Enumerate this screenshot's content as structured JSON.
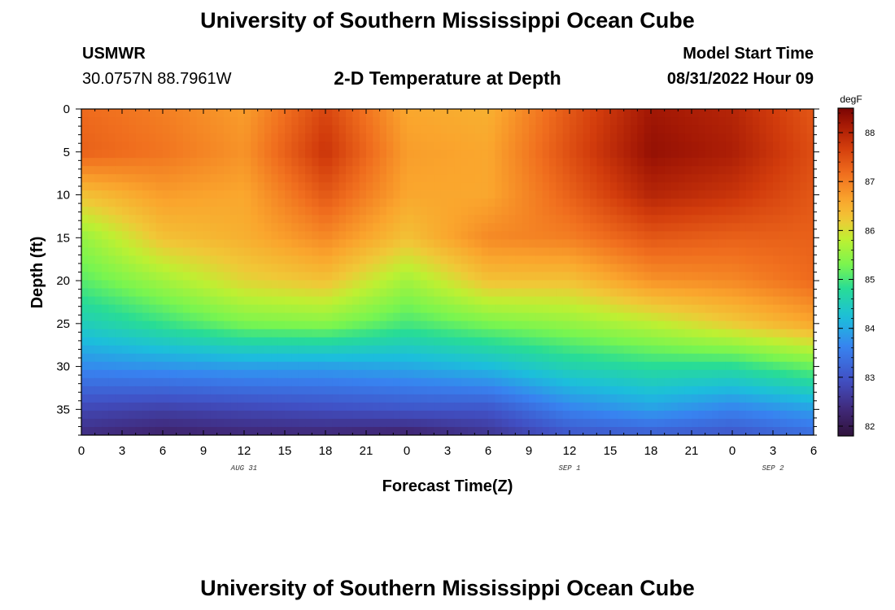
{
  "header": {
    "title": "University of Southern Mississippi Ocean Cube",
    "station": "USMWR",
    "coordinates": "30.0757N  88.7961W",
    "subtitle": "2-D Temperature at Depth",
    "model_start_label": "Model Start Time",
    "model_start_value": "08/31/2022 Hour 09"
  },
  "footer": {
    "title": "University of Southern Mississippi Ocean Cube"
  },
  "chart_data": {
    "type": "heatmap",
    "title": "2-D Temperature at Depth",
    "xlabel": "Forecast Time(Z)",
    "ylabel": "Depth (ft)",
    "x_tick_labels": [
      "0",
      "3",
      "6",
      "9",
      "12",
      "15",
      "18",
      "21",
      "0",
      "3",
      "6",
      "9",
      "12",
      "15",
      "18",
      "21",
      "0",
      "3",
      "6"
    ],
    "x_hours": [
      0,
      3,
      6,
      9,
      12,
      15,
      18,
      21,
      24,
      27,
      30,
      33,
      36,
      39,
      42,
      45,
      48,
      51,
      54
    ],
    "x_range_hours": [
      0,
      54
    ],
    "date_labels": [
      {
        "text": "AUG 31",
        "hour": 12
      },
      {
        "text": "SEP 1",
        "hour": 36
      },
      {
        "text": "SEP 2",
        "hour": 51
      }
    ],
    "y_ticks": [
      "0",
      "5",
      "10",
      "15",
      "20",
      "25",
      "30",
      "35"
    ],
    "y_tick_values": [
      0,
      5,
      10,
      15,
      20,
      25,
      30,
      35
    ],
    "y_range": [
      0,
      38
    ],
    "y_inverted": true,
    "colorbar": {
      "unit": "degF",
      "ticks": [
        "82",
        "83",
        "84",
        "85",
        "86",
        "87",
        "88"
      ],
      "tick_values": [
        82,
        83,
        84,
        85,
        86,
        87,
        88
      ],
      "range": [
        81.8,
        88.5
      ]
    },
    "grid_times": [
      0,
      6,
      12,
      18,
      24,
      30,
      36,
      42,
      48,
      54
    ],
    "grid_depths": [
      0,
      5,
      10,
      15,
      20,
      25,
      30,
      35,
      38
    ],
    "values": [
      [
        87.2,
        87.0,
        86.7,
        87.6,
        86.6,
        86.5,
        87.4,
        88.2,
        88.0,
        87.4
      ],
      [
        87.3,
        87.1,
        86.8,
        87.8,
        86.7,
        86.6,
        87.5,
        88.3,
        88.1,
        87.5
      ],
      [
        86.3,
        86.7,
        86.6,
        87.4,
        86.6,
        86.6,
        87.3,
        88.0,
        87.8,
        87.4
      ],
      [
        85.5,
        86.3,
        86.5,
        86.9,
        86.3,
        86.9,
        87.0,
        87.4,
        87.3,
        87.3
      ],
      [
        85.1,
        85.6,
        86.1,
        86.3,
        85.6,
        86.3,
        86.3,
        86.8,
        86.9,
        87.2
      ],
      [
        84.5,
        84.9,
        85.3,
        85.4,
        85.0,
        85.3,
        85.5,
        85.8,
        86.2,
        86.6
      ],
      [
        83.7,
        83.8,
        83.9,
        83.9,
        84.0,
        84.2,
        84.6,
        84.8,
        84.8,
        85.2
      ],
      [
        82.8,
        82.7,
        82.8,
        82.9,
        83.0,
        83.0,
        83.6,
        83.9,
        83.6,
        83.9
      ],
      [
        82.4,
        82.2,
        82.3,
        82.3,
        82.2,
        82.5,
        83.0,
        83.1,
        83.0,
        83.3
      ]
    ]
  }
}
